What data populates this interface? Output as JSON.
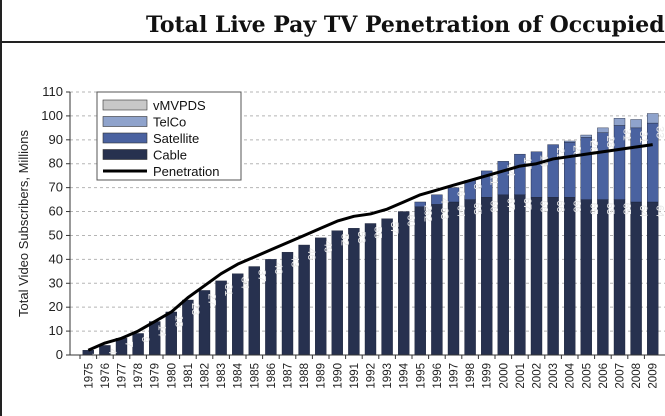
{
  "chart_data": {
    "type": "bar",
    "title": "Total Live Pay TV Penetration of Occupied",
    "ylabel": "Total Video Subscribers, Millions",
    "xlabel": "",
    "ylim": [
      0,
      110
    ],
    "yticks": [
      0,
      10,
      20,
      30,
      40,
      50,
      60,
      70,
      80,
      90,
      100,
      110
    ],
    "grid": "horizontal-dashed",
    "legend_position": "top-left",
    "categories": [
      "1975",
      "1976",
      "1977",
      "1978",
      "1979",
      "1980",
      "1981",
      "1982",
      "1983",
      "1984",
      "1985",
      "1986",
      "1987",
      "1988",
      "1989",
      "1990",
      "1991",
      "1992",
      "1993",
      "1994",
      "1995",
      "1996",
      "1997",
      "1998",
      "1999",
      "2000",
      "2001",
      "2002",
      "2003",
      "2004",
      "2005",
      "2006",
      "2007",
      "2008",
      "2009"
    ],
    "series": [
      {
        "name": "vMVPDS",
        "type": "bar",
        "color": "#c8c8c8",
        "values": [
          0,
          0,
          0,
          0,
          0,
          0,
          0,
          0,
          0,
          0,
          0,
          0,
          0,
          0,
          0,
          0,
          0,
          0,
          0,
          0,
          0,
          0,
          0,
          0,
          0,
          0,
          0,
          0,
          0,
          0,
          0,
          0,
          0,
          0,
          0
        ]
      },
      {
        "name": "TelCo",
        "type": "bar",
        "color": "#8fa3cc",
        "values": [
          0,
          0,
          0,
          0,
          0,
          0,
          0,
          0,
          0,
          0,
          0,
          0,
          0,
          0,
          0,
          0,
          0,
          0,
          0,
          0,
          0,
          0,
          0,
          0,
          0,
          0,
          0,
          0,
          0,
          0.5,
          1,
          2,
          3,
          3.5,
          4
        ]
      },
      {
        "name": "Satellite",
        "type": "bar",
        "color": "#4a62a0",
        "values": [
          0,
          0,
          0,
          0,
          0,
          0,
          0,
          0,
          0,
          0,
          0,
          0,
          0,
          0,
          0,
          0,
          0,
          0,
          0,
          0,
          2,
          4,
          6,
          8,
          11,
          14,
          17,
          19,
          22,
          23,
          26,
          28,
          31,
          31,
          33
        ]
      },
      {
        "name": "Cable",
        "type": "bar",
        "color": "#27314f",
        "values": [
          2,
          4,
          7,
          9,
          14,
          18,
          23,
          27,
          31,
          34,
          37,
          40,
          43,
          46,
          49,
          52,
          53,
          55,
          57,
          60,
          62,
          63,
          64,
          65,
          66,
          67,
          67,
          66,
          66,
          66,
          65,
          65,
          65,
          64,
          64
        ]
      },
      {
        "name": "Penetration",
        "type": "line",
        "color": "#000000",
        "values": [
          2,
          5,
          7,
          10,
          14,
          18,
          24,
          29,
          34,
          38,
          41,
          44,
          47,
          50,
          53,
          56,
          58,
          59,
          61,
          64,
          67,
          69,
          71,
          73,
          75,
          77,
          79,
          80,
          82,
          83,
          84,
          85,
          86,
          87,
          88
        ]
      }
    ],
    "data_labels": {
      "Cable": [
        "2",
        "4",
        "7",
        "9",
        "14",
        "18",
        "23",
        "27",
        "31",
        "34",
        "37",
        "40",
        "43",
        "46",
        "49",
        "52",
        "53",
        "55",
        "57",
        "60",
        "62",
        "63",
        "64",
        "65",
        "66",
        "67",
        "67",
        "66",
        "66",
        "66",
        "65",
        "65",
        "65",
        "64",
        "64"
      ],
      "Satellite": [
        "",
        "",
        "",
        "",
        "",
        "",
        "",
        "",
        "",
        "",
        "",
        "",
        "",
        "",
        "",
        "",
        "",
        "",
        "",
        "",
        "2",
        "4",
        "6",
        "8",
        "11",
        "14",
        "17",
        "19",
        "22",
        "23",
        "26",
        "28",
        "31",
        "31",
        "33"
      ]
    }
  }
}
